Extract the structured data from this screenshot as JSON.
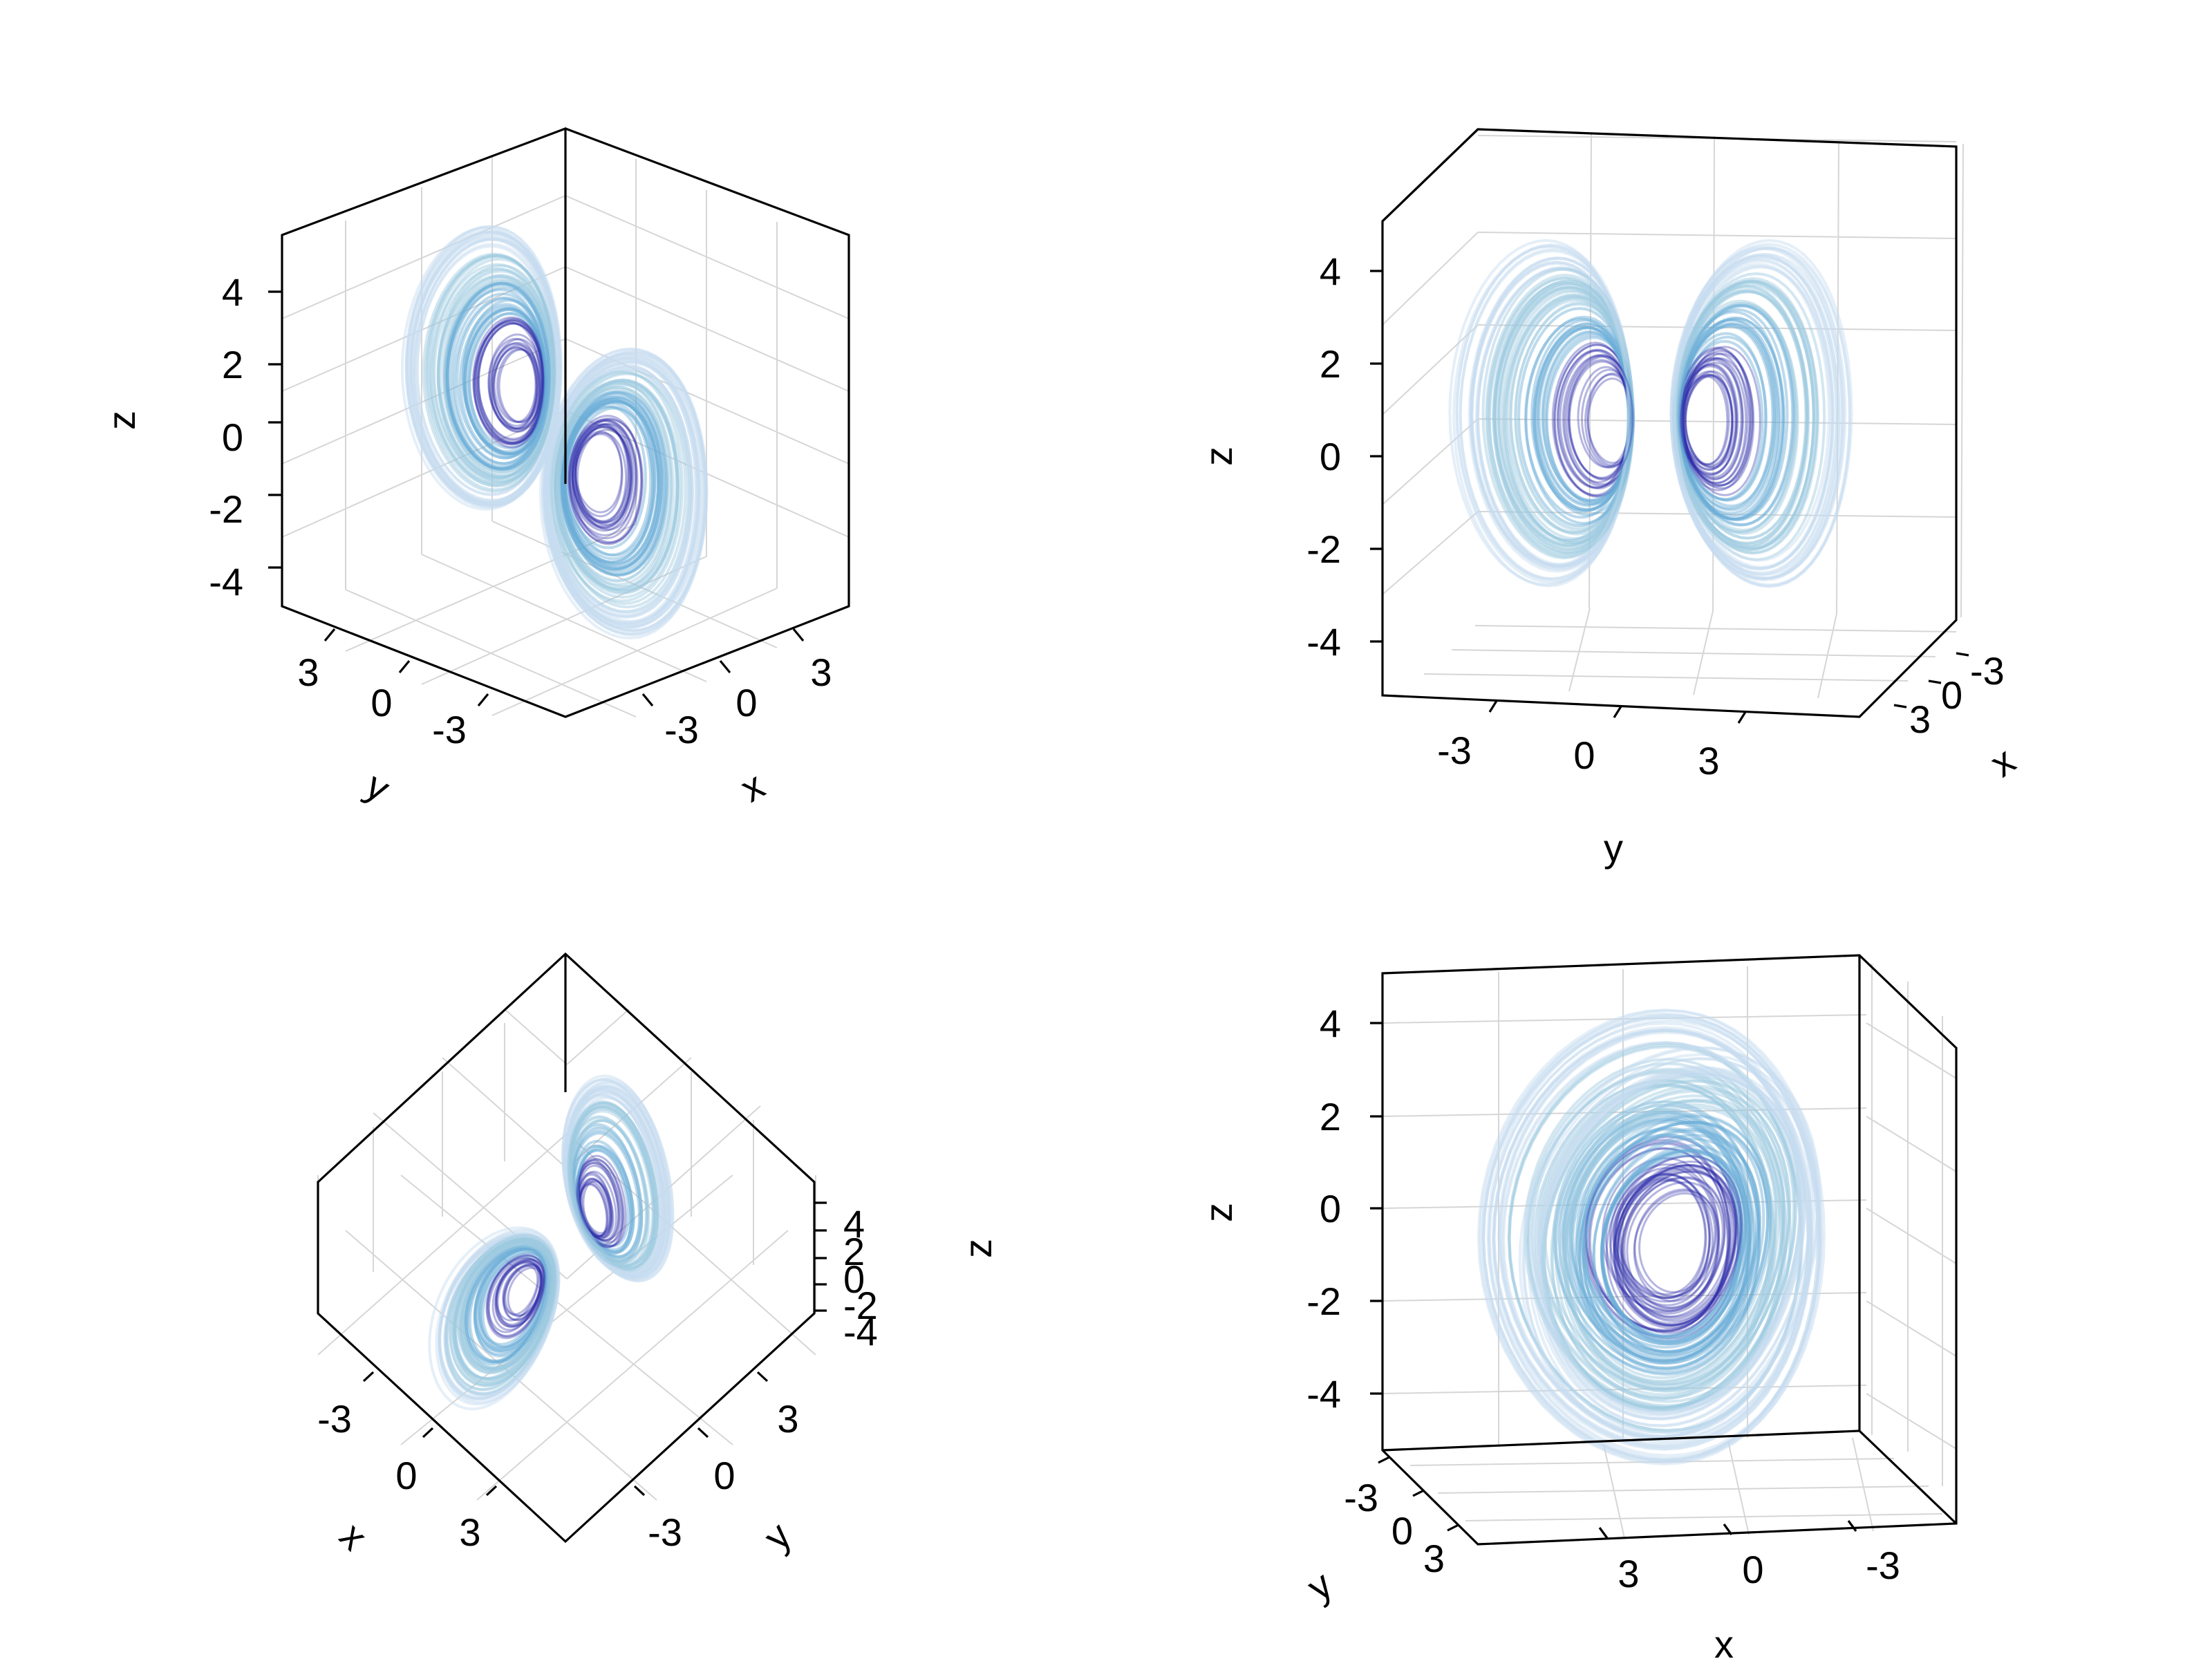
{
  "chart_data": [
    {
      "type": "line",
      "panel": "top-left",
      "x": {
        "label": "x",
        "ticks": [
          "-3",
          "0",
          "3"
        ],
        "lim": [
          -5,
          5
        ]
      },
      "y": {
        "label": "y",
        "ticks": [
          "3",
          "0",
          "-3"
        ],
        "lim": [
          -5,
          5
        ]
      },
      "z": {
        "label": "z",
        "ticks": [
          "4",
          "2",
          "0",
          "-2",
          "-4"
        ],
        "lim": [
          -5,
          5
        ]
      },
      "grid": true,
      "line_colors": [
        "#c6dbef",
        "#9ecae1",
        "#6baed6",
        "#2c2ca8"
      ]
    },
    {
      "type": "line",
      "panel": "top-right",
      "x": {
        "label": "x",
        "ticks": [
          "-3",
          "0",
          "3"
        ],
        "lim": [
          -5,
          5
        ]
      },
      "y": {
        "label": "y",
        "ticks": [
          "-3",
          "0",
          "3"
        ],
        "lim": [
          -5,
          5
        ]
      },
      "z": {
        "label": "z",
        "ticks": [
          "4",
          "2",
          "0",
          "-2",
          "-4"
        ],
        "lim": [
          -5,
          5
        ]
      },
      "grid": true,
      "line_colors": [
        "#c6dbef",
        "#9ecae1",
        "#6baed6",
        "#2c2ca8"
      ]
    },
    {
      "type": "line",
      "panel": "bottom-left",
      "x": {
        "label": "x",
        "ticks": [
          "-3",
          "0",
          "3"
        ],
        "lim": [
          -5,
          5
        ]
      },
      "y": {
        "label": "y",
        "ticks": [
          "3",
          "0",
          "-3"
        ],
        "lim": [
          -5,
          5
        ]
      },
      "z": {
        "label": "z",
        "ticks": [
          "4",
          "2",
          "0",
          "-2",
          "-4"
        ],
        "lim": [
          -5,
          5
        ]
      },
      "grid": true,
      "line_colors": [
        "#c6dbef",
        "#9ecae1",
        "#6baed6",
        "#2c2ca8"
      ]
    },
    {
      "type": "line",
      "panel": "bottom-right",
      "x": {
        "label": "x",
        "ticks": [
          "3",
          "0",
          "-3"
        ],
        "lim": [
          -5,
          5
        ]
      },
      "y": {
        "label": "y",
        "ticks": [
          "-3",
          "0",
          "3"
        ],
        "lim": [
          -5,
          5
        ]
      },
      "z": {
        "label": "z",
        "ticks": [
          "4",
          "2",
          "0",
          "-2",
          "-4"
        ],
        "lim": [
          -5,
          5
        ]
      },
      "grid": true,
      "line_colors": [
        "#c6dbef",
        "#9ecae1",
        "#6baed6",
        "#2c2ca8"
      ]
    }
  ]
}
